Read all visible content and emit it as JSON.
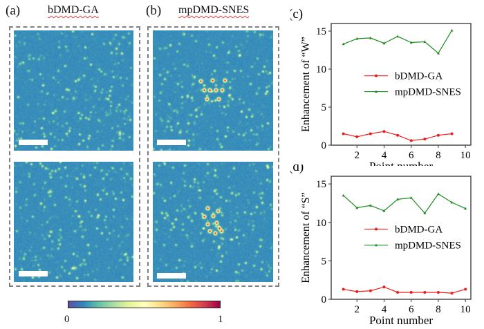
{
  "panels": {
    "a": {
      "label": "(a)",
      "title": "bDMD-GA"
    },
    "b": {
      "label": "(b)",
      "title": "mpDMD-SNES"
    }
  },
  "colorbar": {
    "min_label": "0",
    "max_label": "1",
    "colormap": "Spectral_r",
    "colors": [
      "#5e4fa2",
      "#3288bd",
      "#66c2a5",
      "#abdda4",
      "#e6f598",
      "#ffffbf",
      "#fee08b",
      "#fdae61",
      "#f46d43",
      "#d53e4f",
      "#9e0142"
    ]
  },
  "chart_data": [
    {
      "panel_label": "(c)",
      "type": "line",
      "xlabel": "Point number",
      "ylabel": "Enhancement of “W”",
      "xlim": [
        0.1,
        10.4
      ],
      "ylim": [
        0,
        16
      ],
      "xticks": [
        2,
        4,
        6,
        8,
        10
      ],
      "yticks": [
        0,
        5,
        10,
        15
      ],
      "grid": false,
      "legend_position": "center",
      "x": [
        1,
        2,
        3,
        4,
        5,
        6,
        7,
        8,
        9
      ],
      "series": [
        {
          "name": "bDMD-GA",
          "color": "#ee1c1c",
          "marker": "circle",
          "values": [
            1.5,
            1.1,
            1.5,
            1.8,
            1.3,
            0.6,
            0.8,
            1.3,
            1.5
          ]
        },
        {
          "name": "mpDMD-SNES",
          "color": "#1e8c1e",
          "marker": "triangle",
          "values": [
            13.3,
            14.0,
            14.1,
            13.4,
            14.3,
            13.5,
            13.6,
            12.1,
            15.1
          ]
        }
      ]
    },
    {
      "panel_label": "(d)",
      "type": "line",
      "xlabel": "Point number",
      "ylabel": "Enhancement of “S”",
      "xlim": [
        0.1,
        10.4
      ],
      "ylim": [
        0,
        16
      ],
      "xticks": [
        2,
        4,
        6,
        8,
        10
      ],
      "yticks": [
        0,
        5,
        10,
        15
      ],
      "grid": false,
      "legend_position": "center",
      "x": [
        1,
        2,
        3,
        4,
        5,
        6,
        7,
        8,
        9,
        10
      ],
      "series": [
        {
          "name": "bDMD-GA",
          "color": "#ee1c1c",
          "marker": "circle",
          "values": [
            1.3,
            1.0,
            1.1,
            1.6,
            0.9,
            0.9,
            0.9,
            0.9,
            0.8,
            1.3
          ]
        },
        {
          "name": "mpDMD-SNES",
          "color": "#1e8c1e",
          "marker": "triangle",
          "values": [
            13.5,
            11.9,
            12.2,
            11.5,
            13.0,
            13.2,
            11.2,
            13.7,
            12.6,
            11.8
          ]
        }
      ]
    }
  ]
}
